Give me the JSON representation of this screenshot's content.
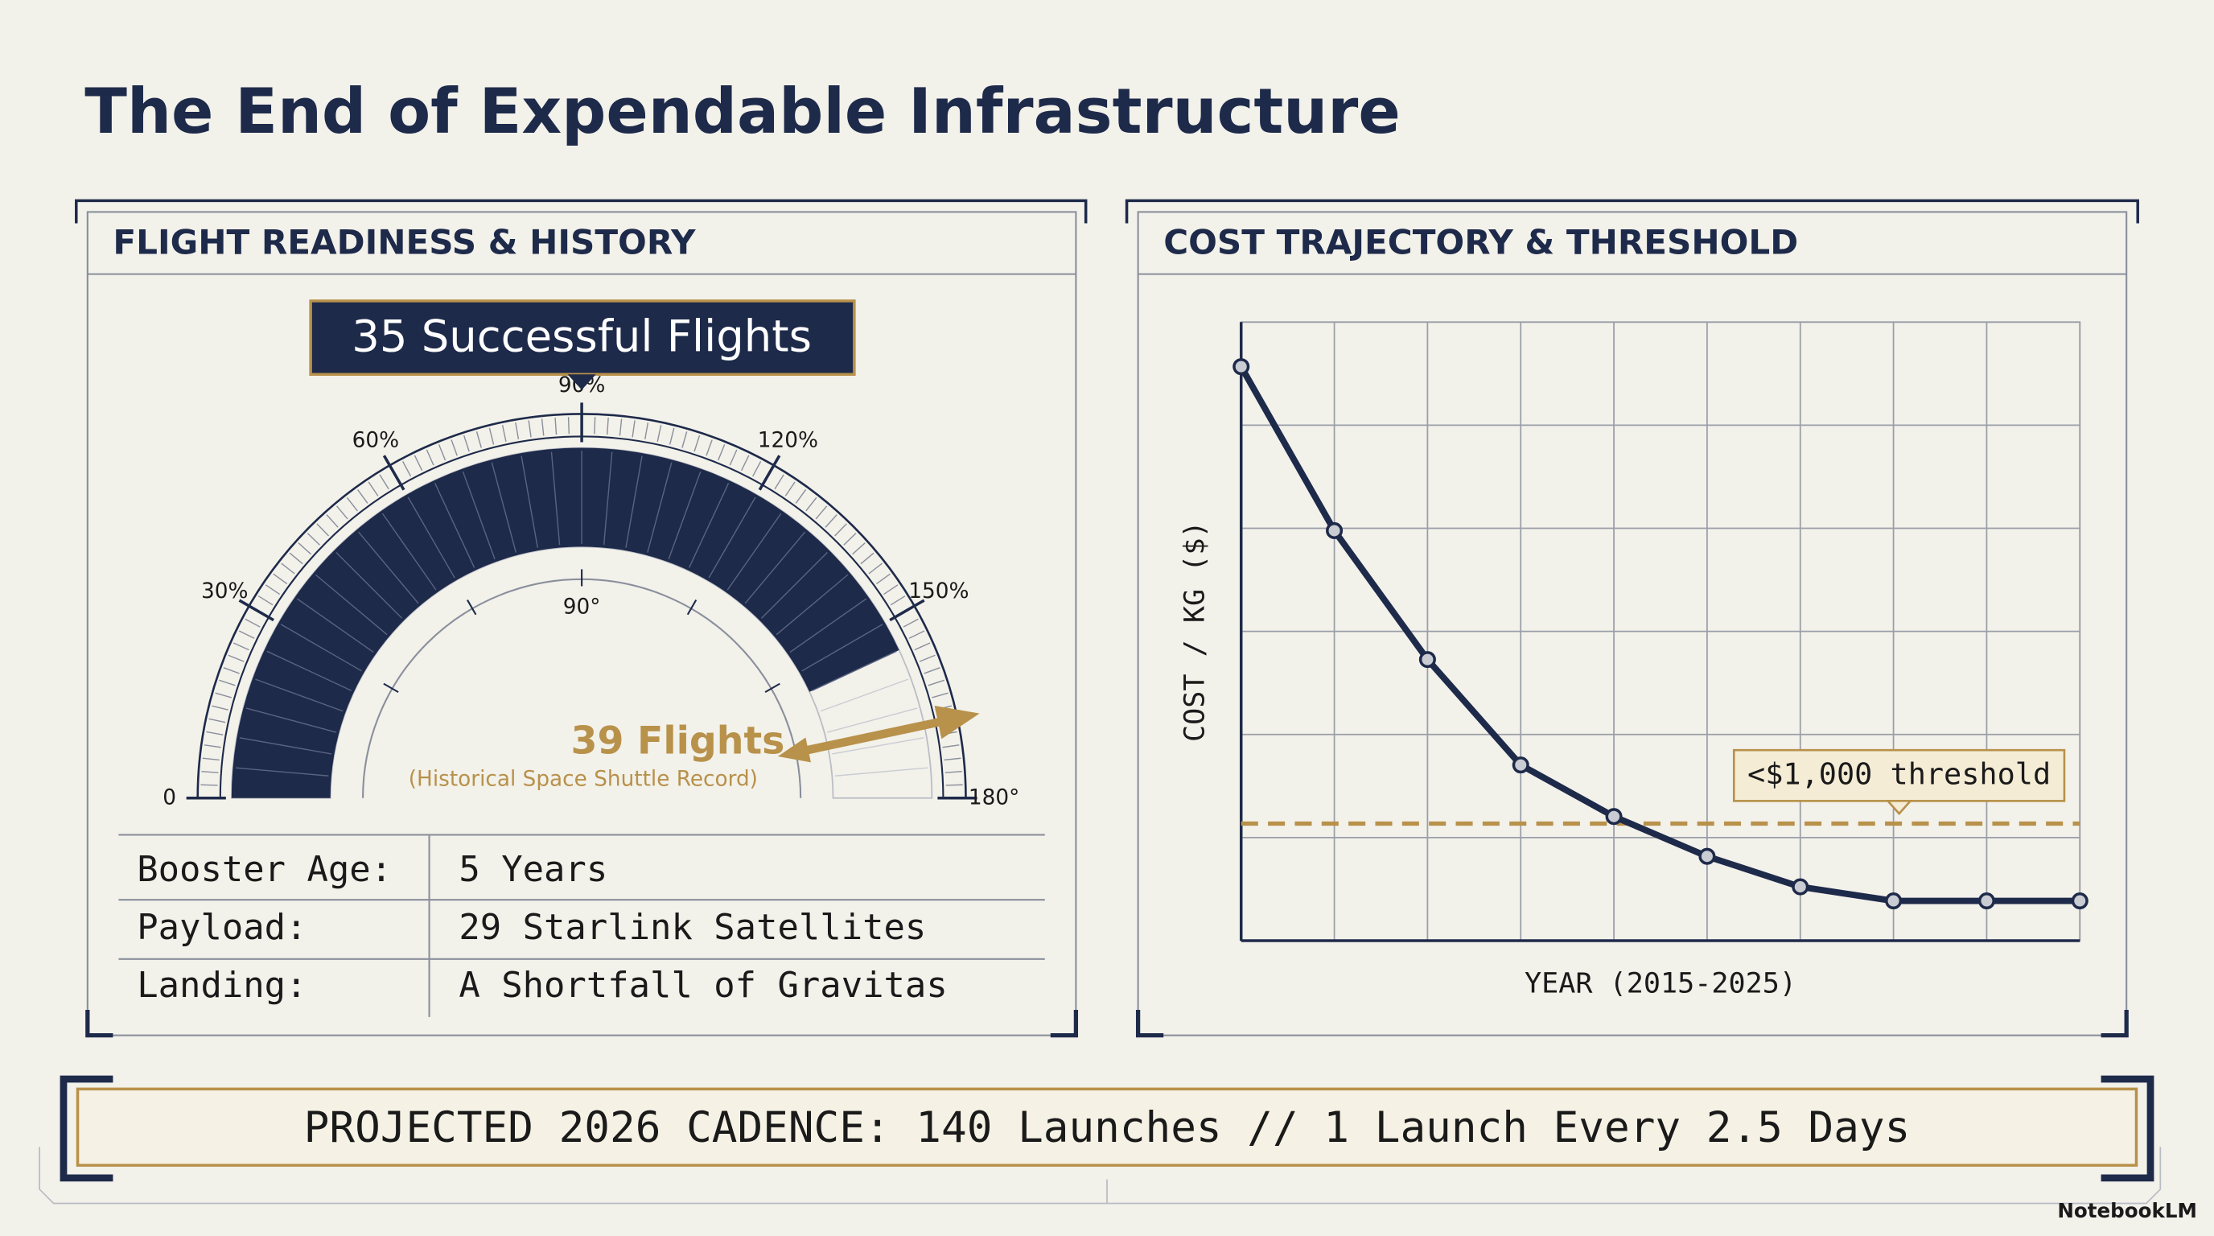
{
  "title": "The End of Expendable Infrastructure",
  "panels": [
    {
      "heading": "FLIGHT READINESS & HISTORY"
    },
    {
      "heading": "COST TRAJECTORY & THRESHOLD"
    }
  ],
  "chart_data": [
    {
      "type": "gauge",
      "ylim": [
        0,
        180
      ],
      "yticks": [
        0,
        {
          "value": 30,
          "label": "30%"
        },
        {
          "value": 60,
          "label": "60%"
        },
        {
          "value": 90,
          "label": "90%"
        },
        {
          "value": 120,
          "label": "120%"
        },
        {
          "value": 150,
          "label": "150%"
        },
        {
          "value": 180,
          "label": "180°"
        }
      ],
      "value": 155,
      "color": "#1e2a4a",
      "marker": {
        "value": 168,
        "color": "#b8914a"
      },
      "inner_label": {
        "value": 90,
        "label": "90°"
      },
      "headline": "35 Successful Flights",
      "marker_label": "39 Flights",
      "marker_note": "(Historical Space Shuttle Record)"
    },
    {
      "type": "line",
      "x_label": "YEAR (2015-2025)",
      "y_label": "COST / KG ($)",
      "categories": [
        null,
        null,
        null,
        null,
        null,
        null,
        null,
        null,
        null,
        null
      ],
      "values": [
        4900,
        3500,
        2400,
        1500,
        1060,
        720,
        460,
        340,
        340,
        340
      ],
      "color": "#1e2a4a",
      "ylim": [
        0,
        5280
      ],
      "yticks": [
        0,
        880,
        1760,
        2640,
        3520,
        4400,
        5280
      ],
      "grid": true,
      "threshold": {
        "value": 1000,
        "label": "<$1,000 threshold",
        "color": "#b8914a"
      }
    }
  ],
  "table": {
    "rows": [
      [
        "Booster Age:",
        "5 Years"
      ],
      [
        "Payload:",
        "29 Starlink Satellites"
      ],
      [
        "Landing:",
        "A Shortfall of Gravitas"
      ]
    ]
  },
  "banner": "PROJECTED 2026 CADENCE: 140 Launches // 1 Launch Every 2.5 Days",
  "footer": "NotebookLM"
}
